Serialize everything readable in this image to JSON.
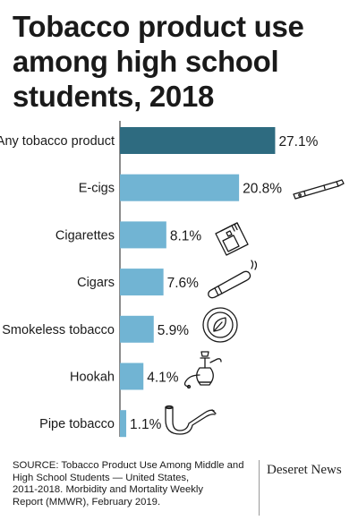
{
  "title_lines": [
    "Tobacco product use",
    "among high school",
    "students, 2018"
  ],
  "chart_data": {
    "type": "bar",
    "orientation": "horizontal",
    "title": "Tobacco product use among high school students, 2018",
    "categories": [
      "Any tobacco product",
      "E-cigs",
      "Cigarettes",
      "Cigars",
      "Smokeless tobacco",
      "Hookah",
      "Pipe tobacco"
    ],
    "values": [
      27.1,
      20.8,
      8.1,
      7.6,
      5.9,
      4.1,
      1.1
    ],
    "value_labels": [
      "27.1%",
      "20.8%",
      "8.1%",
      "7.6%",
      "5.9%",
      "4.1%",
      "1.1%"
    ],
    "unit": "%",
    "xlim": [
      0,
      30
    ],
    "grid": false,
    "colors": {
      "highlight": "#2e6b80",
      "bar": "#71b4d3"
    },
    "icons": [
      "",
      "e-cigarette-icon",
      "cigarette-pack-icon",
      "cigar-icon",
      "smokeless-tobacco-tin-icon",
      "hookah-icon",
      "pipe-icon"
    ]
  },
  "footer": {
    "source_lines": [
      "SOURCE: Tobacco Product Use Among Middle and",
      "High School Students — United States,",
      "2011-2018. Morbidity and Mortality Weekly",
      "Report (MMWR), February 2019."
    ],
    "brand": "Deseret News"
  }
}
